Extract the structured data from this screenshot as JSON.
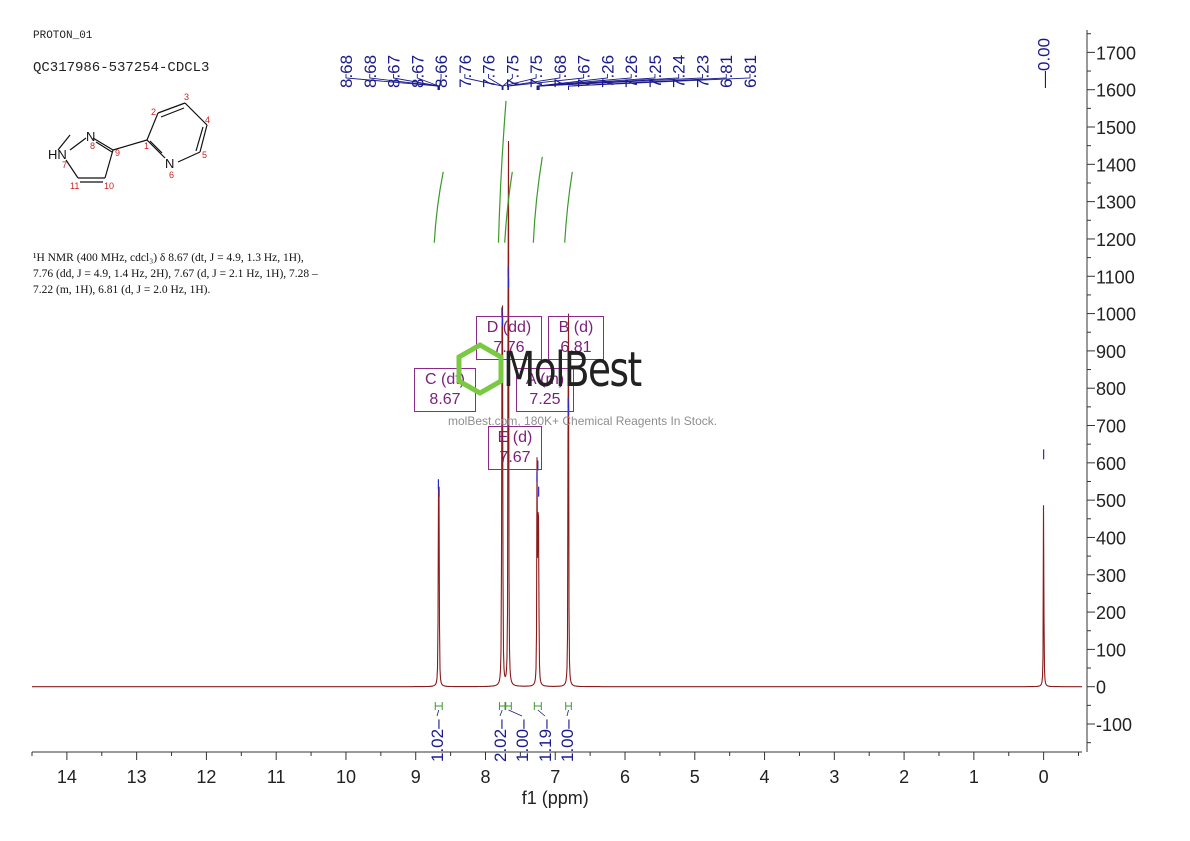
{
  "header": {
    "experiment": "PROTON_01",
    "sample": "QC317986-537254-CDCL3"
  },
  "structure": {
    "atoms": [
      "HN",
      "N",
      "N",
      "1",
      "2",
      "3",
      "4",
      "5",
      "6",
      "7",
      "8",
      "9",
      "10",
      "11"
    ]
  },
  "description": {
    "lines": [
      "¹H NMR (400 MHz, cdcl₃) δ 8.67 (dt, J = 4.9, 1.3 Hz, 1H),",
      "7.76 (dd, J = 4.9, 1.4 Hz, 2H), 7.67 (d, J = 2.1 Hz, 1H), 7.28 –",
      "7.22 (m, 1H), 6.81 (d, J = 2.0 Hz, 1H)."
    ]
  },
  "watermark": {
    "brand": "MolBest",
    "tagline": "molBest.com, 180K+ Chemical Reagents In Stock."
  },
  "colors": {
    "spectrum": "#8b1a1a",
    "peak_label": "#1a1a8c",
    "integral": "#3a9a2a",
    "multiplet": "#7a1f7a",
    "axis": "#333333",
    "watermark_green": "#7ac943"
  },
  "chart_data": {
    "type": "line",
    "xlabel": "f1 (ppm)",
    "x_ticks": [
      14,
      13,
      12,
      11,
      10,
      9,
      8,
      7,
      6,
      5,
      4,
      3,
      2,
      1,
      0
    ],
    "y_ticks": [
      1700,
      1600,
      1500,
      1400,
      1300,
      1200,
      1100,
      1000,
      900,
      800,
      700,
      600,
      500,
      400,
      300,
      200,
      100,
      0,
      -100
    ],
    "xlim": [
      14.5,
      -0.55
    ],
    "ylim": [
      -175,
      1760
    ],
    "x_reversed": true,
    "peaks": [
      {
        "ppm": 8.675,
        "height": 540
      },
      {
        "ppm": 8.665,
        "height": 520
      },
      {
        "ppm": 7.765,
        "height": 1000
      },
      {
        "ppm": 7.755,
        "height": 980
      },
      {
        "ppm": 7.675,
        "height": 1110
      },
      {
        "ppm": 7.67,
        "height": 1080
      },
      {
        "ppm": 7.262,
        "height": 560
      },
      {
        "ppm": 7.25,
        "height": 590
      },
      {
        "ppm": 7.238,
        "height": 520
      },
      {
        "ppm": 6.815,
        "height": 760
      },
      {
        "ppm": 6.81,
        "height": 740
      },
      {
        "ppm": 0.0,
        "height": 620
      }
    ],
    "peak_labels": [
      "8.68",
      "8.68",
      "8.67",
      "8.67",
      "8.66",
      "7.76",
      "7.76",
      "7.75",
      "7.75",
      "7.68",
      "7.67",
      "7.26",
      "7.26",
      "7.25",
      "7.24",
      "7.23",
      "6.81",
      "6.81"
    ],
    "peak_label_ppm": [
      8.68,
      8.68,
      8.67,
      8.67,
      8.66,
      7.76,
      7.76,
      7.75,
      7.75,
      7.68,
      7.67,
      7.26,
      7.26,
      7.25,
      7.24,
      7.23,
      6.81,
      6.81
    ],
    "tms_label": "0.00",
    "tms_ppm": 0.0,
    "integrals": [
      {
        "from": 8.72,
        "to": 8.62,
        "value": "1.02",
        "low": 1190,
        "high": 1380
      },
      {
        "from": 7.8,
        "to": 7.72,
        "value": "2.02",
        "low": 1190,
        "high": 1570
      },
      {
        "from": 7.71,
        "to": 7.63,
        "value": "1.00",
        "low": 1190,
        "high": 1380
      },
      {
        "from": 7.3,
        "to": 7.2,
        "value": "1.19",
        "low": 1190,
        "high": 1420
      },
      {
        "from": 6.85,
        "to": 6.77,
        "value": "1.00",
        "low": 1190,
        "high": 1380
      }
    ],
    "multiplets": [
      {
        "id": "C",
        "type": "dt",
        "shift": "8.67",
        "label": "C (dt)"
      },
      {
        "id": "D",
        "type": "dd",
        "shift": "7.76",
        "label": "D (dd)"
      },
      {
        "id": "B",
        "type": "d",
        "shift": "6.81",
        "label": "B (d)"
      },
      {
        "id": "A",
        "type": "m",
        "shift": "7.25",
        "label": "A (m)"
      },
      {
        "id": "E",
        "type": "d",
        "shift": "7.67",
        "label": "E (d)"
      }
    ]
  }
}
